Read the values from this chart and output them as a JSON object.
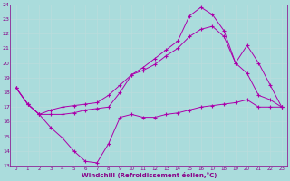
{
  "bg_color": "#aadcdc",
  "grid_color": "#cceeee",
  "line_color": "#aa00aa",
  "xlim_min": -0.5,
  "xlim_max": 23.5,
  "ylim_min": 13,
  "ylim_max": 24,
  "xticks": [
    0,
    1,
    2,
    3,
    4,
    5,
    6,
    7,
    8,
    9,
    10,
    11,
    12,
    13,
    14,
    15,
    16,
    17,
    18,
    19,
    20,
    21,
    22,
    23
  ],
  "yticks": [
    13,
    14,
    15,
    16,
    17,
    18,
    19,
    20,
    21,
    22,
    23,
    24
  ],
  "xlabel": "Windchill (Refroidissement éolien,°C)",
  "line1_x": [
    0,
    1,
    2,
    3,
    4,
    5,
    6,
    7,
    8,
    9,
    10,
    11,
    12,
    13,
    14,
    15,
    16,
    17,
    18,
    19,
    20,
    21,
    22,
    23
  ],
  "line1_y": [
    18.3,
    17.2,
    16.5,
    15.6,
    14.9,
    14.0,
    13.3,
    13.2,
    14.5,
    16.3,
    16.5,
    16.3,
    16.3,
    16.5,
    16.6,
    16.8,
    17.0,
    17.1,
    17.2,
    17.3,
    17.5,
    17.0,
    17.0,
    17.0
  ],
  "line2_x": [
    0,
    1,
    2,
    3,
    4,
    5,
    6,
    7,
    8,
    9,
    10,
    11,
    12,
    13,
    14,
    15,
    16,
    17,
    18,
    19,
    20,
    21,
    22,
    23
  ],
  "line2_y": [
    18.3,
    17.2,
    16.5,
    16.8,
    17.0,
    17.1,
    17.2,
    17.3,
    17.8,
    18.5,
    19.2,
    19.5,
    19.9,
    20.5,
    21.0,
    21.8,
    22.3,
    22.5,
    21.8,
    20.0,
    21.2,
    20.0,
    18.5,
    17.0
  ],
  "line3_x": [
    0,
    1,
    2,
    3,
    4,
    5,
    6,
    7,
    8,
    9,
    10,
    11,
    12,
    13,
    14,
    15,
    16,
    17,
    18,
    19,
    20,
    21,
    22,
    23
  ],
  "line3_y": [
    18.3,
    17.2,
    16.5,
    16.5,
    16.5,
    16.6,
    16.8,
    16.9,
    17.0,
    18.0,
    19.2,
    19.7,
    20.3,
    20.9,
    21.5,
    23.2,
    23.8,
    23.3,
    22.2,
    20.0,
    19.3,
    17.8,
    17.5,
    17.0
  ]
}
